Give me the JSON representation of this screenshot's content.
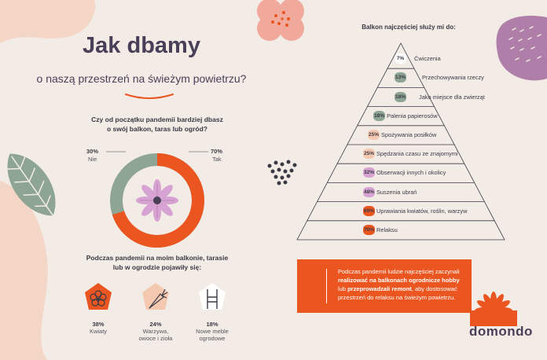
{
  "title": "Jak dbamy",
  "subtitle": "o naszą przestrzeń na świeżym powietrzu?",
  "question1": {
    "line1": "Czy od początku pandemii bardziej dbasz",
    "line2": "o swój balkon, taras lub ogród?"
  },
  "donut": {
    "no_pct": "30%",
    "no_label": "Nie",
    "yes_pct": "70%",
    "yes_label": "Tak"
  },
  "question2": {
    "line1": "Podczas pandemii na moim balkonie, tarasie",
    "line2": "lub w ogrodzie pojawiły się:"
  },
  "categories": [
    {
      "pct": "38%",
      "label1": "Kwiaty",
      "label2": "",
      "color": "#ea5520",
      "icon": "flower-icon"
    },
    {
      "pct": "24%",
      "label1": "Warzywa,",
      "label2": "owoce i zioła",
      "color": "#f5c9b0",
      "icon": "carrot-icon"
    },
    {
      "pct": "18%",
      "label1": "Nowe meble",
      "label2": "ogrodowe",
      "color": "#ffffff",
      "icon": "chair-icon"
    }
  ],
  "pyramid": {
    "title": "Balkon najczęściej służy mi do:",
    "rows": [
      {
        "pct": "7%",
        "label": "Ćwiczenia",
        "color": "#ffffff"
      },
      {
        "pct": "13%",
        "label": "Przechowywania rzeczy",
        "color": "#8fa594"
      },
      {
        "pct": "18%",
        "label": "Jako miejsce dla zwierząt",
        "color": "#8fa594"
      },
      {
        "pct": "18%",
        "label": "Palenia papierosów",
        "color": "#8fa594"
      },
      {
        "pct": "25%",
        "label": "Spożywania posiłków",
        "color": "#f5c9b0"
      },
      {
        "pct": "25%",
        "label": "Spędzania czasu ze znajomymi",
        "color": "#f5c9b0"
      },
      {
        "pct": "32%",
        "label": "Obserwacji innych i okolicy",
        "color": "#d6a3d2"
      },
      {
        "pct": "48%",
        "label": "Suszenia ubrań",
        "color": "#d6a3d2"
      },
      {
        "pct": "60%",
        "label": "Uprawiania kwiatów, roślin, warzyw",
        "color": "#ea5520"
      },
      {
        "pct": "70%",
        "label": "Relaksu",
        "color": "#ea5520"
      }
    ]
  },
  "callout": {
    "t1": "Podczas pandemii ludzie najczęściej zaczynali ",
    "b1": "realizować na balkonach ogrodnicze hobby",
    "t2": " lub ",
    "b2": "przeprowadzali remont",
    "t3": ", aby dostosować przestrzeń do relaksu na świeżym powietrzu."
  },
  "logo": "domondo",
  "colors": {
    "accent": "#ea5520",
    "sage": "#8fa594",
    "purple": "#4a3f58",
    "pink": "#f5c9b0",
    "lilac": "#d6a3d2",
    "mauve": "#b07fa9"
  }
}
